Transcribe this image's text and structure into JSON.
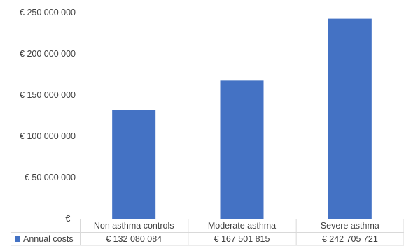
{
  "chart_data": {
    "type": "bar",
    "categories": [
      "Non asthma controls",
      "Moderate asthma",
      "Severe asthma"
    ],
    "series": [
      {
        "name": "Annual costs",
        "values": [
          132080084,
          167501815,
          242705721
        ],
        "labels": [
          "€ 132 080 084",
          "€ 167 501 815",
          "€ 242 705 721"
        ],
        "color": "#4472C4"
      }
    ],
    "y_ticks": [
      0,
      50000000,
      100000000,
      150000000,
      200000000,
      250000000
    ],
    "y_tick_labels": [
      "€ -",
      "€ 50 000 000",
      "€ 100 000 000",
      "€ 150 000 000",
      "€ 200 000 000",
      "€ 250 000 000"
    ],
    "ylim": [
      0,
      250000000
    ],
    "grid": false,
    "legend": "data-table-left",
    "title": "",
    "xlabel": "",
    "ylabel": ""
  }
}
